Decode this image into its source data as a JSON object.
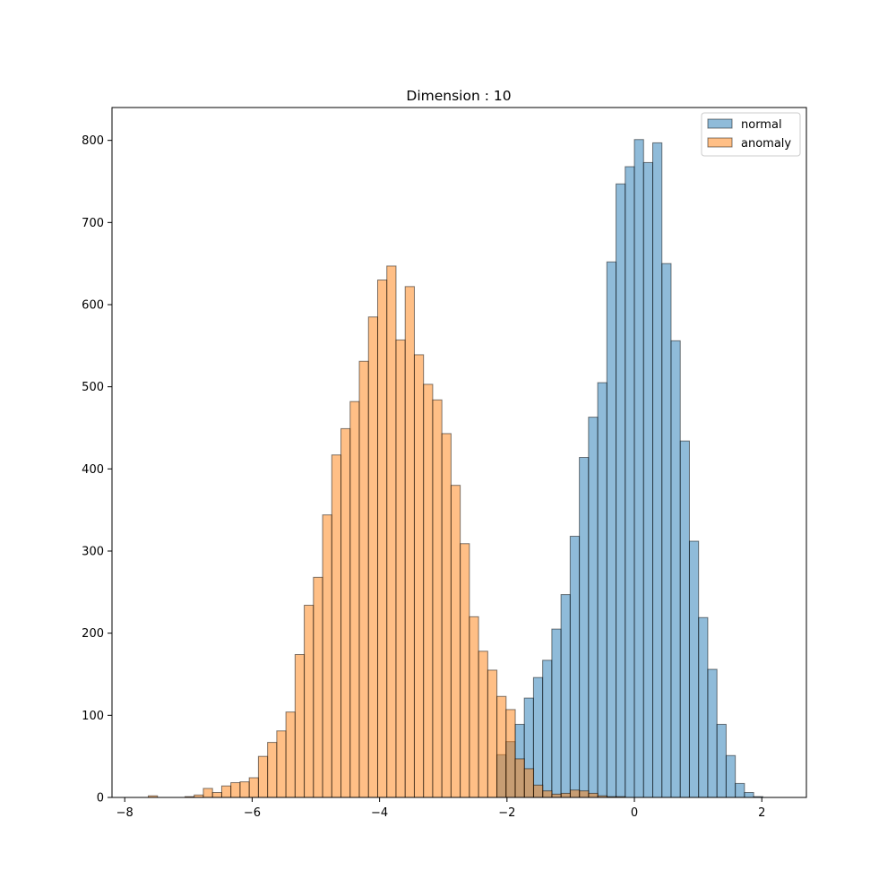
{
  "chart_data": {
    "type": "histogram",
    "title": "Dimension : 10",
    "xlabel": "",
    "ylabel": "",
    "xlim": [
      -8.2,
      2.7
    ],
    "ylim": [
      0,
      840
    ],
    "x_ticks": [
      -8,
      -6,
      -4,
      -2,
      0,
      2
    ],
    "y_ticks": [
      0,
      100,
      200,
      300,
      400,
      500,
      600,
      700,
      800
    ],
    "grid": false,
    "legend_position": "top-right",
    "bin_width": 0.144,
    "series": [
      {
        "name": "normal",
        "color": "#1f77b4",
        "opacity": 0.5,
        "bin_start": -2.16,
        "values": [
          52,
          68,
          89,
          121,
          146,
          167,
          205,
          247,
          318,
          414,
          463,
          505,
          652,
          747,
          768,
          801,
          773,
          797,
          650,
          556,
          434,
          312,
          219,
          156,
          89,
          51,
          17,
          6,
          1
        ]
      },
      {
        "name": "anomaly",
        "color": "#ff7f0e",
        "opacity": 0.5,
        "bin_start": -7.63,
        "values": [
          2,
          0,
          0,
          0,
          1,
          3,
          11,
          6,
          14,
          18,
          19,
          24,
          50,
          67,
          81,
          104,
          174,
          234,
          268,
          344,
          417,
          449,
          482,
          531,
          585,
          630,
          647,
          557,
          622,
          539,
          503,
          484,
          443,
          380,
          309,
          220,
          178,
          155,
          123,
          107,
          47,
          35,
          15,
          8,
          4,
          5,
          9,
          8,
          5,
          2,
          1,
          1
        ]
      }
    ]
  }
}
